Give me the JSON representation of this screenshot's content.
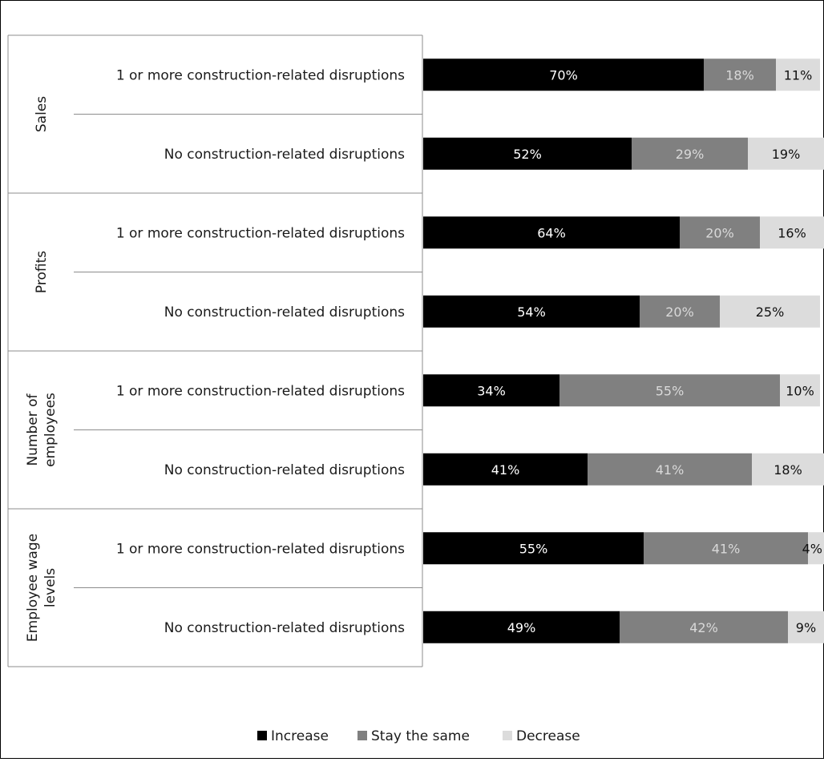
{
  "chart_data": {
    "type": "bar",
    "stacked": true,
    "orientation": "horizontal",
    "xlim": [
      0,
      100
    ],
    "groups": [
      {
        "label": "Sales",
        "label_lines": [
          "Sales"
        ]
      },
      {
        "label": "Profits",
        "label_lines": [
          "Profits"
        ]
      },
      {
        "label": "Number of employees",
        "label_lines": [
          "Number of",
          "employees"
        ]
      },
      {
        "label": "Employee wage levels",
        "label_lines": [
          "Employee wage",
          "levels"
        ]
      }
    ],
    "categories": [
      "1 or more construction-related disruptions",
      "No construction-related disruptions",
      "1 or more construction-related disruptions",
      "No construction-related disruptions",
      "1 or more construction-related disruptions",
      "No construction-related disruptions",
      "1 or more construction-related disruptions",
      "No construction-related disruptions"
    ],
    "series": [
      {
        "name": "Increase",
        "color": "#000000",
        "label_color": "#ffffff",
        "values": [
          70,
          52,
          64,
          54,
          34,
          41,
          55,
          49
        ]
      },
      {
        "name": "Stay the same",
        "color": "#808080",
        "label_color": "#d9d9d9",
        "values": [
          18,
          29,
          20,
          20,
          55,
          41,
          41,
          42
        ]
      },
      {
        "name": "Decrease",
        "color": "#dcdcdc",
        "label_color": "#111111",
        "values": [
          11,
          19,
          16,
          25,
          10,
          18,
          4,
          9
        ]
      }
    ],
    "value_suffix": "%",
    "legend": {
      "position": "bottom"
    }
  }
}
